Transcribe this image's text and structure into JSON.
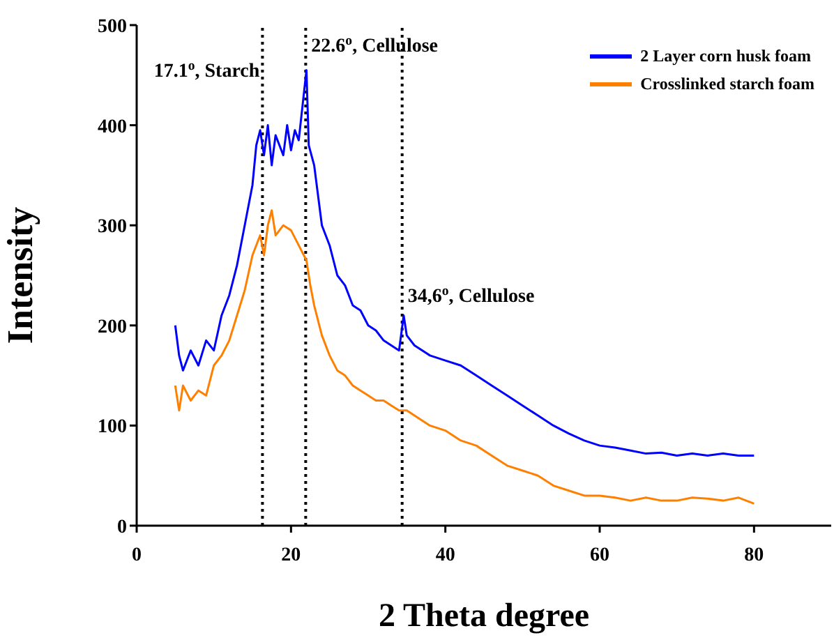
{
  "chart_data": {
    "type": "line",
    "xlabel": "2 Theta degree",
    "ylabel": "Intensity",
    "xlim": [
      0,
      90
    ],
    "xticks": [
      0,
      20,
      40,
      60,
      80
    ],
    "ylim": [
      0,
      500
    ],
    "yticks": [
      0,
      100,
      200,
      300,
      400,
      500
    ],
    "legend": "top right",
    "series": [
      {
        "name": "2 Layer corn husk foam",
        "color": "#0000ff",
        "x": [
          5,
          5.5,
          6,
          7,
          8,
          9,
          10,
          11,
          12,
          13,
          14,
          15,
          15.5,
          16,
          16.5,
          17,
          17.5,
          18,
          19,
          19.5,
          20,
          20.5,
          21,
          21.5,
          22,
          22.3,
          23,
          24,
          25,
          26,
          27,
          28,
          29,
          30,
          31,
          32,
          33,
          34,
          34.6,
          35,
          36,
          38,
          40,
          42,
          44,
          46,
          48,
          50,
          52,
          54,
          56,
          58,
          60,
          62,
          64,
          66,
          68,
          70,
          72,
          74,
          76,
          78,
          80
        ],
        "values": [
          200,
          170,
          155,
          175,
          160,
          185,
          175,
          210,
          230,
          260,
          300,
          340,
          380,
          395,
          370,
          400,
          360,
          390,
          370,
          400,
          375,
          395,
          385,
          420,
          455,
          380,
          360,
          300,
          280,
          250,
          240,
          220,
          215,
          200,
          195,
          185,
          180,
          175,
          210,
          190,
          180,
          170,
          165,
          160,
          150,
          140,
          130,
          120,
          110,
          100,
          92,
          85,
          80,
          78,
          75,
          72,
          73,
          70,
          72,
          70,
          72,
          70,
          70
        ]
      },
      {
        "name": "Crosslinked starch foam",
        "color": "#ff8000",
        "x": [
          5,
          5.5,
          6,
          7,
          8,
          9,
          10,
          11,
          12,
          13,
          14,
          15,
          16,
          16.5,
          17,
          17.5,
          18,
          19,
          20,
          21,
          22,
          22.5,
          23,
          24,
          25,
          26,
          27,
          28,
          29,
          30,
          31,
          32,
          33,
          34,
          35,
          36,
          38,
          40,
          42,
          44,
          46,
          48,
          50,
          52,
          54,
          56,
          58,
          60,
          62,
          64,
          66,
          68,
          70,
          72,
          74,
          76,
          78,
          80
        ],
        "values": [
          140,
          115,
          140,
          125,
          135,
          130,
          160,
          170,
          185,
          210,
          235,
          270,
          290,
          270,
          300,
          315,
          290,
          300,
          295,
          280,
          265,
          240,
          220,
          190,
          170,
          155,
          150,
          140,
          135,
          130,
          125,
          125,
          120,
          115,
          115,
          110,
          100,
          95,
          85,
          80,
          70,
          60,
          55,
          50,
          40,
          35,
          30,
          30,
          28,
          25,
          28,
          25,
          25,
          28,
          27,
          25,
          28,
          22
        ]
      }
    ],
    "ref_lines": [
      {
        "axis": "x",
        "value": 16.3,
        "color": "#000000",
        "line_style": "dotted"
      },
      {
        "axis": "x",
        "value": 21.9,
        "color": "#000000",
        "line_style": "dotted"
      },
      {
        "axis": "x",
        "value": 34.4,
        "color": "#000000",
        "line_style": "dotted"
      }
    ],
    "annotations": [
      {
        "text": "17.1$^{o}$, Starch",
        "x": 16.3,
        "y": 440
      },
      {
        "text": "22.6$^{o}$, Cellulose",
        "x": 21.9,
        "y": 465
      },
      {
        "text": "34,6$^{o}$, Cellulose",
        "x": 34.4,
        "y": 215
      }
    ]
  }
}
